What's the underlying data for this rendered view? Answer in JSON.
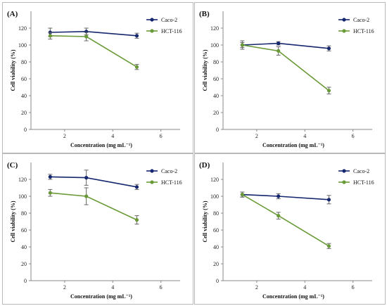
{
  "chart_data": [
    {
      "type": "line",
      "panel_label": "(A)",
      "x": [
        1.4,
        2.9,
        5.0
      ],
      "series": [
        {
          "name": "Caco-2",
          "values": [
            115,
            116,
            111
          ],
          "errors": [
            5,
            4,
            3
          ],
          "color": "#15276e"
        },
        {
          "name": "HCT-116",
          "values": [
            111,
            110,
            74
          ],
          "errors": [
            4,
            5,
            3
          ],
          "color": "#6a9a38"
        }
      ],
      "xlabel": "Concentration (mg mL⁻¹)",
      "ylabel": "Cell viability (%)",
      "xlim": [
        0.6,
        6.8
      ],
      "ylim": [
        0,
        140
      ],
      "xticks": [
        2,
        4,
        6
      ],
      "yticks": [
        0,
        20,
        40,
        60,
        80,
        100,
        120
      ],
      "legend": "top-right",
      "grid": false
    },
    {
      "type": "line",
      "panel_label": "(B)",
      "x": [
        1.4,
        2.9,
        5.0
      ],
      "series": [
        {
          "name": "Caco-2",
          "values": [
            100,
            102,
            96
          ],
          "errors": [
            3,
            2,
            3
          ],
          "color": "#15276e"
        },
        {
          "name": "HCT-116",
          "values": [
            100,
            93,
            46
          ],
          "errors": [
            5,
            5,
            4
          ],
          "color": "#6a9a38"
        }
      ],
      "xlabel": "Concentration (mg mL⁻¹)",
      "ylabel": "Cell viability (%)",
      "xlim": [
        0.6,
        6.8
      ],
      "ylim": [
        0,
        140
      ],
      "xticks": [
        2,
        4,
        6
      ],
      "yticks": [
        0,
        20,
        40,
        60,
        80,
        100,
        120
      ],
      "legend": "top-right",
      "grid": false
    },
    {
      "type": "line",
      "panel_label": "(C)",
      "x": [
        1.4,
        2.9,
        5.0
      ],
      "series": [
        {
          "name": "Caco-2",
          "values": [
            123,
            122,
            111
          ],
          "errors": [
            3,
            9,
            3
          ],
          "color": "#15276e"
        },
        {
          "name": "HCT-116",
          "values": [
            104,
            100,
            72
          ],
          "errors": [
            4,
            10,
            5
          ],
          "color": "#6a9a38"
        }
      ],
      "xlabel": "Concentration (mg mL⁻¹)",
      "ylabel": "Cell viability (%)",
      "xlim": [
        0.6,
        6.8
      ],
      "ylim": [
        0,
        140
      ],
      "xticks": [
        2,
        4,
        6
      ],
      "yticks": [
        0,
        20,
        40,
        60,
        80,
        100,
        120
      ],
      "legend": "top-right",
      "grid": false
    },
    {
      "type": "line",
      "panel_label": "(D)",
      "x": [
        1.4,
        2.9,
        5.0
      ],
      "series": [
        {
          "name": "Caco-2",
          "values": [
            102,
            100,
            96
          ],
          "errors": [
            3,
            3,
            5
          ],
          "color": "#15276e"
        },
        {
          "name": "HCT-116",
          "values": [
            102,
            77,
            41
          ],
          "errors": [
            3,
            4,
            3
          ],
          "color": "#6a9a38"
        }
      ],
      "xlabel": "Concentration (mg mL⁻¹)",
      "ylabel": "Cell viability (%)",
      "xlim": [
        0.6,
        6.8
      ],
      "ylim": [
        0,
        140
      ],
      "xticks": [
        2,
        4,
        6
      ],
      "yticks": [
        0,
        20,
        40,
        60,
        80,
        100,
        120
      ],
      "legend": "top-right",
      "grid": false
    }
  ]
}
